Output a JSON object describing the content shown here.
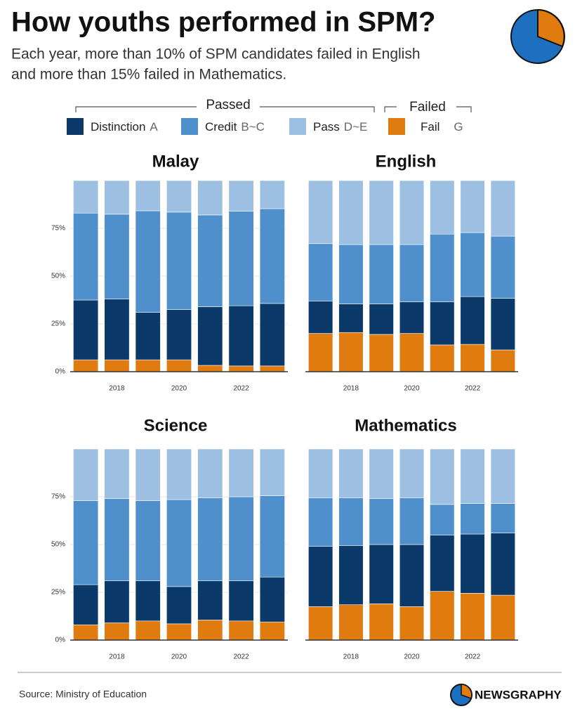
{
  "header": {
    "title": "How youths performed in SPM?",
    "subtitle_lines": [
      "Each year, more than 10% of SPM candidates failed in English",
      "and more than 15% failed in Mathematics."
    ]
  },
  "legend": {
    "groups": [
      "Passed",
      "Failed"
    ],
    "items": [
      {
        "name": "Distinction",
        "grade": "A",
        "color": "#0b3a6a"
      },
      {
        "name": "Credit",
        "grade": "B~C",
        "color": "#4f8fcb"
      },
      {
        "name": "Pass",
        "grade": "D~E",
        "color": "#9dc0e2"
      },
      {
        "name": "Fail",
        "grade": "G",
        "color": "#e07b10"
      }
    ]
  },
  "chart_data": [
    {
      "type": "bar",
      "stacked": true,
      "title": "Malay",
      "categories": [
        null,
        "2018",
        null,
        "2020",
        null,
        "2022",
        null
      ],
      "ylim": [
        0,
        100
      ],
      "yticks": [
        {
          "value": 0,
          "label": "0%"
        },
        {
          "value": 25,
          "label": "25%"
        },
        {
          "value": 50,
          "label": "50%"
        },
        {
          "value": 75,
          "label": "75%"
        }
      ],
      "grid": true,
      "series": [
        {
          "color": "#e07b10",
          "values": [
            6.2,
            6.2,
            6.2,
            6.2,
            3.3,
            3,
            3
          ]
        },
        {
          "color": "#0b3a6a",
          "values": [
            31.3,
            31.8,
            24.8,
            26.3,
            30.7,
            31.5,
            32.7
          ]
        },
        {
          "color": "#4f8fcb",
          "values": [
            45.5,
            44.4,
            53.2,
            51,
            48,
            49.5,
            49.6
          ]
        },
        {
          "color": "#9dc0e2",
          "values": [
            17,
            17.6,
            15.8,
            16.5,
            18,
            16,
            14.7
          ]
        }
      ]
    },
    {
      "type": "bar",
      "stacked": true,
      "title": "English",
      "categories": [
        null,
        "2018",
        null,
        "2020",
        null,
        "2022",
        null
      ],
      "ylim": [
        0,
        100
      ],
      "series": [
        {
          "color": "#e07b10",
          "values": [
            20,
            20.5,
            19.5,
            20,
            14,
            14.3,
            11.4
          ]
        },
        {
          "color": "#0b3a6a",
          "values": [
            17,
            15,
            16,
            16.5,
            22.5,
            25,
            27
          ]
        },
        {
          "color": "#4f8fcb",
          "values": [
            30,
            31,
            31,
            30,
            35.5,
            33.5,
            32.5
          ]
        },
        {
          "color": "#9dc0e2",
          "values": [
            33,
            33.5,
            33.5,
            33.5,
            28,
            27.2,
            29.1
          ]
        }
      ]
    },
    {
      "type": "bar",
      "stacked": true,
      "title": "Science",
      "categories": [
        null,
        "2018",
        null,
        "2020",
        null,
        "2022",
        null
      ],
      "ylim": [
        0,
        100
      ],
      "yticks": [
        {
          "value": 0,
          "label": "0%"
        },
        {
          "value": 25,
          "label": "25%"
        },
        {
          "value": 50,
          "label": "50%"
        },
        {
          "value": 75,
          "label": "75%"
        }
      ],
      "grid": true,
      "series": [
        {
          "color": "#e07b10",
          "values": [
            8,
            9,
            10,
            8.5,
            10.5,
            10,
            9.5
          ]
        },
        {
          "color": "#0b3a6a",
          "values": [
            21,
            22,
            21,
            19.5,
            20.5,
            21,
            23.5
          ]
        },
        {
          "color": "#4f8fcb",
          "values": [
            44,
            43,
            42,
            45.5,
            43.5,
            44,
            42.5
          ]
        },
        {
          "color": "#9dc0e2",
          "values": [
            27,
            26,
            27,
            26.5,
            25.5,
            25,
            24.5
          ]
        }
      ]
    },
    {
      "type": "bar",
      "stacked": true,
      "title": "Mathematics",
      "categories": [
        null,
        "2018",
        null,
        "2020",
        null,
        "2022",
        null
      ],
      "ylim": [
        0,
        100
      ],
      "series": [
        {
          "color": "#e07b10",
          "values": [
            17.5,
            18.5,
            19,
            17.5,
            25.5,
            24.5,
            23.5
          ]
        },
        {
          "color": "#0b3a6a",
          "values": [
            31.5,
            31,
            31,
            32.5,
            29.5,
            31,
            32.5
          ]
        },
        {
          "color": "#4f8fcb",
          "values": [
            25.5,
            25,
            24,
            24.5,
            16,
            16,
            15.5
          ]
        },
        {
          "color": "#9dc0e2",
          "values": [
            25.5,
            25.5,
            26,
            25.5,
            29,
            28.5,
            28.5
          ]
        }
      ]
    }
  ],
  "footer": {
    "source": "Source: Ministry of Education",
    "brand": "NEWSGRAPHY"
  }
}
